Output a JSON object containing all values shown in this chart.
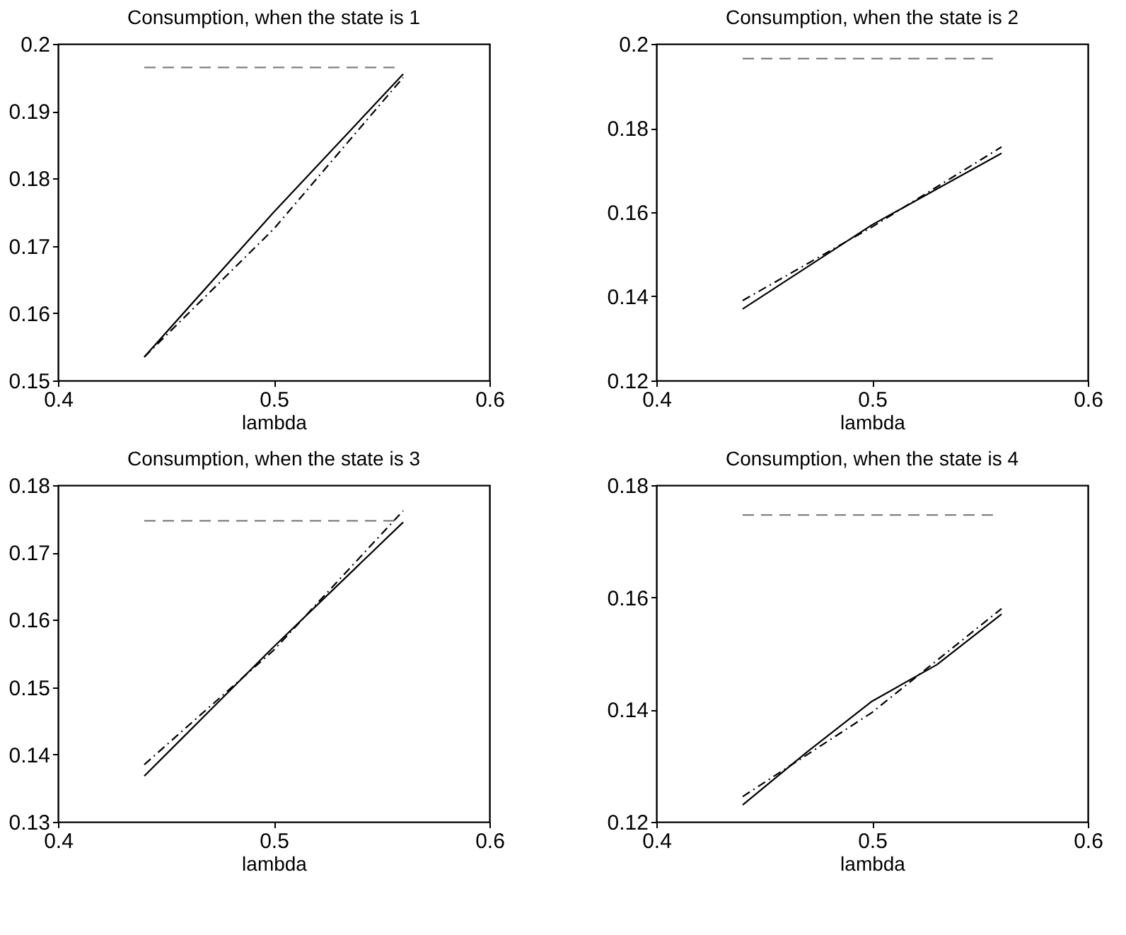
{
  "chart_data": [
    {
      "type": "line",
      "title": "Consumption, when the state is 1",
      "xlabel": "lambda",
      "xlim": [
        0.4,
        0.6
      ],
      "xticks": [
        0.4,
        0.5,
        0.6
      ],
      "ylim": [
        0.15,
        0.2
      ],
      "yticks": [
        0.15,
        0.16,
        0.17,
        0.18,
        0.19,
        0.2
      ],
      "grid": false,
      "series": [
        {
          "color": "#000000",
          "line_style": "solid",
          "x": [
            0.44,
            0.5,
            0.56
          ],
          "values": [
            0.1535,
            0.175,
            0.1955
          ]
        },
        {
          "color": "#000000",
          "line_style": "dotted",
          "x": [
            0.44,
            0.5,
            0.56
          ],
          "values": [
            0.1535,
            0.1725,
            0.195
          ]
        },
        {
          "color": "#808080",
          "line_style": "dashed",
          "x": [
            0.44,
            0.556
          ],
          "values": [
            0.1965,
            0.1965
          ]
        }
      ]
    },
    {
      "type": "line",
      "title": "Consumption, when the state is 2",
      "xlabel": "lambda",
      "xlim": [
        0.4,
        0.6
      ],
      "xticks": [
        0.4,
        0.5,
        0.6
      ],
      "ylim": [
        0.12,
        0.2
      ],
      "yticks": [
        0.12,
        0.14,
        0.16,
        0.18,
        0.2
      ],
      "grid": false,
      "series": [
        {
          "color": "#000000",
          "line_style": "solid",
          "x": [
            0.44,
            0.5,
            0.56
          ],
          "values": [
            0.137,
            0.157,
            0.174
          ]
        },
        {
          "color": "#000000",
          "line_style": "dotted",
          "x": [
            0.44,
            0.5,
            0.56
          ],
          "values": [
            0.139,
            0.1565,
            0.1755
          ]
        },
        {
          "color": "#808080",
          "line_style": "dashed",
          "x": [
            0.44,
            0.556
          ],
          "values": [
            0.1965,
            0.1965
          ]
        }
      ]
    },
    {
      "type": "line",
      "title": "Consumption, when the state is 3",
      "xlabel": "lambda",
      "xlim": [
        0.4,
        0.6
      ],
      "xticks": [
        0.4,
        0.5,
        0.6
      ],
      "ylim": [
        0.13,
        0.18
      ],
      "yticks": [
        0.13,
        0.14,
        0.15,
        0.16,
        0.17,
        0.18
      ],
      "grid": false,
      "series": [
        {
          "color": "#000000",
          "line_style": "solid",
          "x": [
            0.44,
            0.5,
            0.56
          ],
          "values": [
            0.1368,
            0.156,
            0.1745
          ]
        },
        {
          "color": "#000000",
          "line_style": "dotted",
          "x": [
            0.44,
            0.5,
            0.56
          ],
          "values": [
            0.1385,
            0.1555,
            0.1762
          ]
        },
        {
          "color": "#808080",
          "line_style": "dashed",
          "x": [
            0.44,
            0.556
          ],
          "values": [
            0.1747,
            0.1747
          ]
        }
      ]
    },
    {
      "type": "line",
      "title": "Consumption, when the state is 4",
      "xlabel": "lambda",
      "xlim": [
        0.4,
        0.6
      ],
      "xticks": [
        0.4,
        0.5,
        0.6
      ],
      "ylim": [
        0.12,
        0.18
      ],
      "yticks": [
        0.12,
        0.14,
        0.16,
        0.18
      ],
      "grid": false,
      "series": [
        {
          "color": "#000000",
          "line_style": "solid",
          "x": [
            0.44,
            0.47,
            0.5,
            0.53,
            0.56
          ],
          "values": [
            0.123,
            0.1325,
            0.1415,
            0.148,
            0.157
          ]
        },
        {
          "color": "#000000",
          "line_style": "dotted",
          "x": [
            0.44,
            0.5,
            0.56
          ],
          "values": [
            0.1245,
            0.1395,
            0.158
          ]
        },
        {
          "color": "#808080",
          "line_style": "dashed",
          "x": [
            0.44,
            0.556
          ],
          "values": [
            0.1747,
            0.1747
          ]
        }
      ]
    }
  ]
}
